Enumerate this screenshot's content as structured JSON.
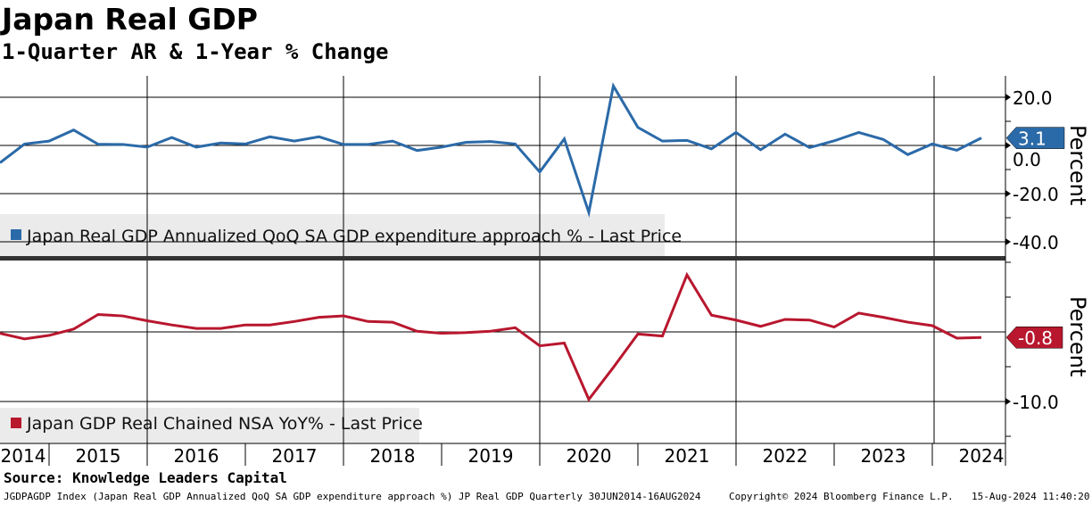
{
  "title": "Japan Real GDP",
  "subtitle": "1-Quarter AR & 1-Year % Change",
  "source": "Source: Knowledge Leaders Capital",
  "footer": {
    "left": "JGDPAGDP Index (Japan Real GDP Annualized QoQ SA GDP expenditure approach %) JP Real GDP  Quarterly 30JUN2014-16AUG2024",
    "copyright": "Copyright© 2024 Bloomberg Finance L.P.",
    "timestamp": "15-Aug-2024 11:40:20"
  },
  "chart_data": [
    {
      "type": "line",
      "panel": "top",
      "legend": "Japan Real GDP Annualized QoQ SA GDP expenditure approach % - Last Price",
      "legend_placement": "bottom-left",
      "ylabel": "Percent",
      "yticks": [
        "20.0",
        "0.0",
        "-20.0",
        "-40.0"
      ],
      "ytick_values": [
        20,
        0,
        -20,
        -40
      ],
      "ylim": [
        -46,
        28
      ],
      "color": "#2b6aa8",
      "last_value": "3.1",
      "x_start": "2014-Q2",
      "values": [
        -7.2,
        0.6,
        1.8,
        6.4,
        0.5,
        0.4,
        -0.7,
        3.3,
        -0.7,
        1.0,
        0.6,
        3.6,
        1.8,
        3.6,
        0.4,
        0.4,
        1.8,
        -2.1,
        -0.7,
        1.3,
        1.6,
        0.6,
        -11.0,
        2.7,
        -27.8,
        24.7,
        7.5,
        1.8,
        2.1,
        -1.4,
        5.4,
        -1.8,
        4.7,
        -0.9,
        1.9,
        5.4,
        2.5,
        -3.8,
        0.6,
        -2.0,
        3.1
      ]
    },
    {
      "type": "line",
      "panel": "bottom",
      "legend": "Japan GDP Real Chained NSA YoY% - Last Price",
      "legend_placement": "bottom-left",
      "ylabel": "Percent",
      "yticks": [
        "-10.0"
      ],
      "ytick_values": [
        -10
      ],
      "ylim": [
        -16,
        10
      ],
      "color": "#b8172e",
      "last_value": "-0.8",
      "x_start": "2014-Q2",
      "values": [
        -0.2,
        -1.0,
        -0.5,
        0.4,
        2.5,
        2.3,
        1.6,
        1.0,
        0.5,
        0.5,
        1.0,
        1.0,
        1.5,
        2.1,
        2.3,
        1.5,
        1.4,
        0.1,
        -0.2,
        -0.1,
        0.1,
        0.6,
        -2.0,
        -1.6,
        -9.7,
        -5.1,
        -0.3,
        -0.6,
        8.2,
        2.4,
        1.7,
        0.8,
        1.8,
        1.7,
        0.7,
        2.7,
        2.1,
        1.4,
        0.9,
        -0.9,
        -0.8
      ]
    }
  ],
  "x_axis": {
    "labels": [
      "2014",
      "2015",
      "2016",
      "2017",
      "2018",
      "2019",
      "2020",
      "2021",
      "2022",
      "2023",
      "2024"
    ]
  }
}
